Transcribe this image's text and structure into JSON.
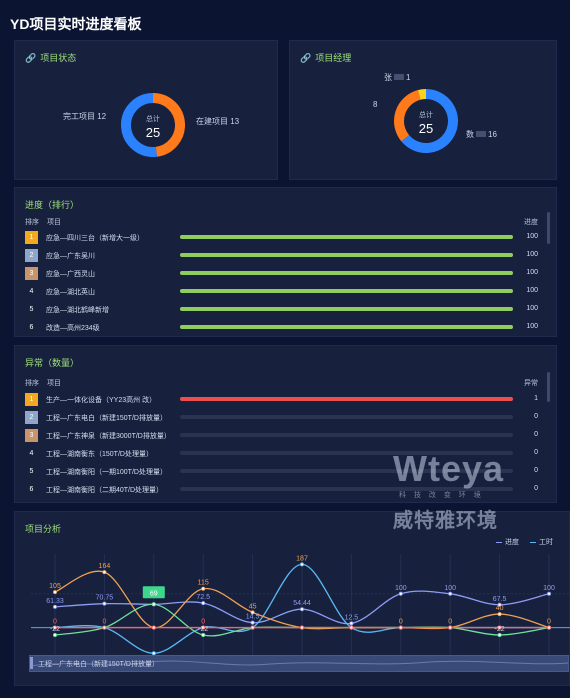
{
  "page_title": "YD项目实时进度看板",
  "status_panel": {
    "title": "项目状态",
    "center_label": "总计",
    "center_value": "25",
    "segments": [
      {
        "label": "完工项目",
        "value": 12,
        "color": "#ff7a1a"
      },
      {
        "label": "在建项目",
        "value": 13,
        "color": "#2a82ff"
      }
    ],
    "left_label": "完工项目 12",
    "right_label": "在建项目 13"
  },
  "manager_panel": {
    "title": "项目经理",
    "center_label": "总计",
    "center_value": "25",
    "segments": [
      {
        "value": 16,
        "color": "#2a82ff"
      },
      {
        "value": 8,
        "color": "#ff7a1a"
      },
      {
        "value": 1,
        "color": "#ffd21a"
      }
    ],
    "label_top": "张",
    "label_top_value": "1",
    "label_left": "8",
    "label_right_prefix": "数",
    "label_right_value": "16"
  },
  "progress_panel": {
    "title": "进度（排行）",
    "col_rank": "排序",
    "col_project": "项目",
    "col_value": "进度",
    "rows": [
      {
        "rank": "1",
        "name": "应急—四川三台（新增大一级）",
        "value": "100",
        "pct": 1.0
      },
      {
        "rank": "2",
        "name": "应急—广东吴川",
        "value": "100",
        "pct": 1.0
      },
      {
        "rank": "3",
        "name": "应急—广西灵山",
        "value": "100",
        "pct": 1.0
      },
      {
        "rank": "4",
        "name": "应急—湖北英山",
        "value": "100",
        "pct": 1.0
      },
      {
        "rank": "5",
        "name": "应急—湖北鹤峰新增",
        "value": "100",
        "pct": 1.0
      },
      {
        "rank": "6",
        "name": "改造—高州234级",
        "value": "100",
        "pct": 1.0
      }
    ]
  },
  "abnormal_panel": {
    "title": "异常（数量）",
    "col_rank": "排序",
    "col_project": "项目",
    "col_value": "异常",
    "rows": [
      {
        "rank": "1",
        "name": "生产—一体化设备（YY23高州 改）",
        "value": "1",
        "pct": 1.0
      },
      {
        "rank": "2",
        "name": "工程—广东电白（新建150T/D排放量）",
        "value": "0",
        "pct": 0
      },
      {
        "rank": "3",
        "name": "工程—广东神泉（新建3000T/D排放量）",
        "value": "0",
        "pct": 0
      },
      {
        "rank": "4",
        "name": "工程—湖南衡东（150T/D处理量）",
        "value": "0",
        "pct": 0
      },
      {
        "rank": "5",
        "name": "工程—湖南衡阳（一期100T/D处理量）",
        "value": "0",
        "pct": 0
      },
      {
        "rank": "6",
        "name": "工程—湖南衡阳（二期40T/D处理量）",
        "value": "0",
        "pct": 0
      }
    ]
  },
  "analysis_panel": {
    "title": "项目分析",
    "legend": [
      "进度",
      "工时"
    ],
    "slider_label": "工程—广东电白（新建150T/D排放量）"
  },
  "chart_data": {
    "type": "line",
    "x": [
      "1",
      "2",
      "3",
      "4",
      "5",
      "6",
      "7",
      "8",
      "9",
      "10",
      "11"
    ],
    "ylim": [
      -90,
      200
    ],
    "series": [
      {
        "name": "进度",
        "color": "#8e9cf5",
        "values": [
          61.33,
          70.75,
          69,
          72.5,
          14.5,
          54.44,
          12.5,
          100,
          100,
          67.5,
          100
        ]
      },
      {
        "name": "工时",
        "color": "#5ab8f5",
        "values": [
          0,
          0,
          -76,
          0,
          0,
          187,
          0,
          0,
          0,
          0,
          0
        ]
      },
      {
        "color": "#f0a050",
        "values": [
          105,
          164,
          0,
          115,
          45,
          0,
          0,
          0,
          0,
          40,
          0
        ]
      },
      {
        "color": "#6fe09a",
        "values": [
          -22,
          0,
          69,
          -22,
          0,
          0,
          0,
          0,
          0,
          -22,
          0
        ]
      },
      {
        "color": "#ff6060",
        "values": [
          0,
          0,
          0,
          0,
          0,
          0,
          0,
          0,
          0,
          0,
          0
        ]
      }
    ],
    "labels": [
      {
        "text": "105",
        "series": 2,
        "i": 0,
        "color": "#f0a050"
      },
      {
        "text": "164",
        "series": 2,
        "i": 1,
        "color": "#f0a050"
      },
      {
        "text": "115",
        "series": 2,
        "i": 3,
        "color": "#f0a050"
      },
      {
        "text": "45",
        "series": 2,
        "i": 4,
        "color": "#f0a050"
      },
      {
        "text": "187",
        "series": 1,
        "i": 5,
        "color": "#f0a050"
      },
      {
        "text": "40",
        "series": 2,
        "i": 9,
        "color": "#f0a050"
      },
      {
        "text": "61.33",
        "series": 0,
        "i": 0,
        "color": "#8e9cf5"
      },
      {
        "text": "70.75",
        "series": 0,
        "i": 1,
        "color": "#8e9cf5"
      },
      {
        "text": "72.5",
        "series": 0,
        "i": 3,
        "color": "#8e9cf5"
      },
      {
        "text": "14.5",
        "series": 0,
        "i": 4,
        "color": "#8e9cf5"
      },
      {
        "text": "54.44",
        "series": 0,
        "i": 5,
        "color": "#8e9cf5"
      },
      {
        "text": "12.5",
        "series": 0,
        "i": 6,
        "color": "#8e9cf5"
      },
      {
        "text": "100",
        "series": 0,
        "i": 7,
        "color": "#8e9cf5"
      },
      {
        "text": "100",
        "series": 0,
        "i": 8,
        "color": "#8e9cf5"
      },
      {
        "text": "67.5",
        "series": 0,
        "i": 9,
        "color": "#8e9cf5"
      },
      {
        "text": "100",
        "series": 0,
        "i": 10,
        "color": "#8e9cf5"
      },
      {
        "text": "-22",
        "series": 3,
        "i": 0,
        "color": "#c9d3e6"
      },
      {
        "text": "-22",
        "series": 3,
        "i": 3,
        "color": "#c9d3e6"
      },
      {
        "text": "-22",
        "series": 3,
        "i": 9,
        "color": "#c9d3e6"
      },
      {
        "text": "0",
        "series": 4,
        "i": 0,
        "color": "#ff6060"
      },
      {
        "text": "0",
        "series": 4,
        "i": 1,
        "color": "#ff6060"
      },
      {
        "text": "0",
        "series": 4,
        "i": 3,
        "color": "#ff6060"
      },
      {
        "text": "0",
        "series": 4,
        "i": 7,
        "color": "#f0a050"
      },
      {
        "text": "0",
        "series": 4,
        "i": 8,
        "color": "#f0a050"
      },
      {
        "text": "0",
        "series": 4,
        "i": 10,
        "color": "#f0a050"
      }
    ],
    "badges": [
      {
        "text": "69",
        "series": 3,
        "i": 2
      },
      {
        "text": "-76",
        "series": 1,
        "i": 2
      }
    ]
  },
  "watermark": {
    "brand": "Wteya",
    "slogan": "科 技 改 变 环 境",
    "name": "威特雅环境"
  }
}
